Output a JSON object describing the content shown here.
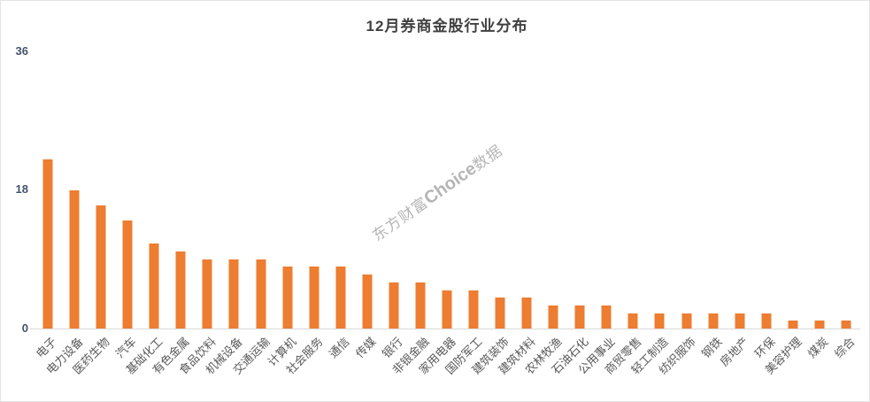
{
  "chart_data": {
    "type": "bar",
    "title": "12月券商金股行业分布",
    "categories": [
      "电子",
      "电力设备",
      "医药生物",
      "汽车",
      "基础化工",
      "有色金属",
      "食品饮料",
      "机械设备",
      "交通运输",
      "计算机",
      "社会服务",
      "通信",
      "传媒",
      "银行",
      "非银金融",
      "家用电器",
      "国防军工",
      "建筑装饰",
      "建筑材料",
      "农林牧渔",
      "石油石化",
      "公用事业",
      "商贸零售",
      "轻工制造",
      "纺织服饰",
      "钢铁",
      "房地产",
      "环保",
      "美容护理",
      "煤炭",
      "综合"
    ],
    "values": [
      22,
      18,
      16,
      14,
      11,
      10,
      9,
      9,
      9,
      8,
      8,
      8,
      7,
      6,
      6,
      5,
      5,
      4,
      4,
      3,
      3,
      3,
      2,
      2,
      2,
      2,
      2,
      2,
      1,
      1,
      1
    ],
    "xlabel": "",
    "ylabel": "",
    "ylim": [
      0,
      36
    ],
    "yticks": [
      "0",
      "18",
      "36"
    ],
    "grid": false,
    "legend_position": "none",
    "bar_color": "#ED7D31"
  },
  "watermark": {
    "prefix": "东方财富",
    "brand": "Choice",
    "suffix": "数据"
  }
}
